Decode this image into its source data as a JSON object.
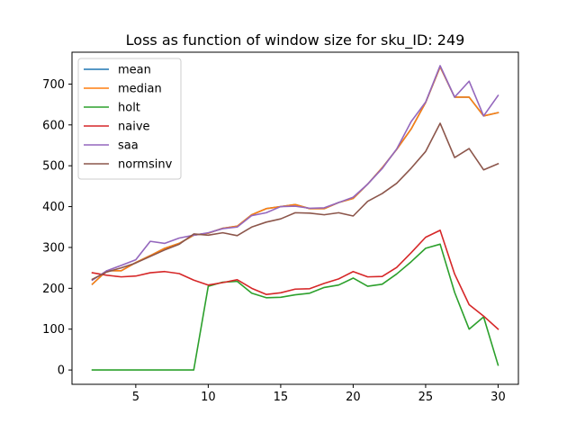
{
  "chart_data": {
    "type": "line",
    "title": "Loss as function of window size for sku_ID: 249",
    "xlabel": "",
    "ylabel": "",
    "x": [
      2,
      3,
      4,
      5,
      6,
      7,
      8,
      9,
      10,
      11,
      12,
      13,
      14,
      15,
      16,
      17,
      18,
      19,
      20,
      21,
      22,
      23,
      24,
      25,
      26,
      27,
      28,
      29,
      30
    ],
    "xlim": [
      0.6,
      31.4
    ],
    "ylim": [
      -35,
      778
    ],
    "xticks": [
      5,
      10,
      15,
      20,
      25,
      30
    ],
    "yticks": [
      0,
      100,
      200,
      300,
      400,
      500,
      600,
      700
    ],
    "grid": false,
    "legend_position": "top-left",
    "series": [
      {
        "name": "mean",
        "color": "#1f77b4",
        "values": [
          210,
          243,
          243,
          263,
          280,
          298,
          310,
          330,
          335,
          347,
          352,
          380,
          395,
          400,
          405,
          395,
          395,
          410,
          420,
          455,
          495,
          540,
          590,
          655,
          742,
          668,
          668,
          622,
          630
        ]
      },
      {
        "name": "median",
        "color": "#ff7f0e",
        "values": [
          210,
          243,
          243,
          263,
          280,
          298,
          310,
          330,
          335,
          347,
          352,
          380,
          395,
          400,
          405,
          395,
          395,
          410,
          420,
          455,
          495,
          540,
          590,
          655,
          742,
          668,
          668,
          622,
          630
        ]
      },
      {
        "name": "holt",
        "color": "#2ca02c",
        "values": [
          0,
          0,
          0,
          0,
          0,
          0,
          0,
          0,
          205,
          215,
          217,
          188,
          177,
          178,
          184,
          188,
          202,
          208,
          225,
          205,
          210,
          235,
          265,
          298,
          308,
          190,
          100,
          130,
          12
        ]
      },
      {
        "name": "naive",
        "color": "#d62728",
        "values": [
          238,
          232,
          228,
          230,
          238,
          241,
          236,
          220,
          208,
          214,
          221,
          200,
          185,
          189,
          198,
          199,
          212,
          223,
          241,
          228,
          229,
          251,
          287,
          325,
          342,
          235,
          160,
          132,
          100
        ]
      },
      {
        "name": "saa",
        "color": "#9467bd",
        "values": [
          220,
          243,
          256,
          270,
          315,
          310,
          323,
          330,
          336,
          346,
          350,
          378,
          385,
          400,
          401,
          396,
          397,
          410,
          423,
          455,
          493,
          541,
          608,
          656,
          745,
          668,
          707,
          622,
          672
        ]
      },
      {
        "name": "normsinv",
        "color": "#8c564b",
        "values": [
          222,
          240,
          250,
          262,
          278,
          294,
          308,
          333,
          330,
          336,
          329,
          350,
          362,
          370,
          385,
          384,
          380,
          385,
          377,
          413,
          432,
          457,
          494,
          535,
          604,
          520,
          542,
          490,
          505
        ]
      }
    ]
  }
}
